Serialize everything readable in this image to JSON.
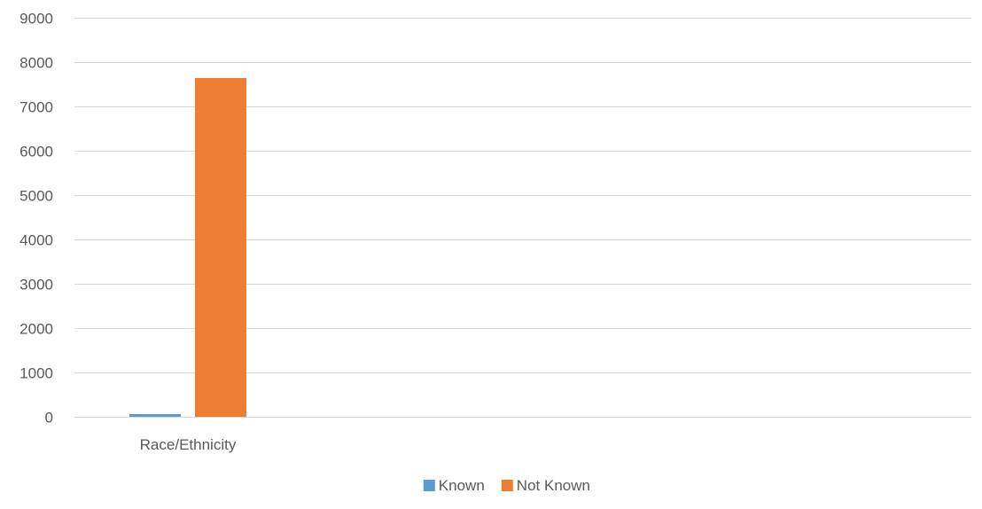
{
  "chart_data": {
    "type": "bar",
    "title": "",
    "xlabel": "",
    "ylabel": "",
    "categories": [
      "Race/Ethnicity"
    ],
    "series": [
      {
        "name": "Known",
        "values": [
          60
        ],
        "color": "#5B9BD5"
      },
      {
        "name": "Not Known",
        "values": [
          7640
        ],
        "color": "#ED7D31"
      }
    ],
    "ylim": [
      0,
      9000
    ],
    "yticks": [
      0,
      1000,
      2000,
      3000,
      4000,
      5000,
      6000,
      7000,
      8000,
      9000
    ],
    "grid": true,
    "legend_position": "bottom"
  },
  "colors": {
    "gridline": "#D9D9D9",
    "axis_text": "#595959"
  }
}
